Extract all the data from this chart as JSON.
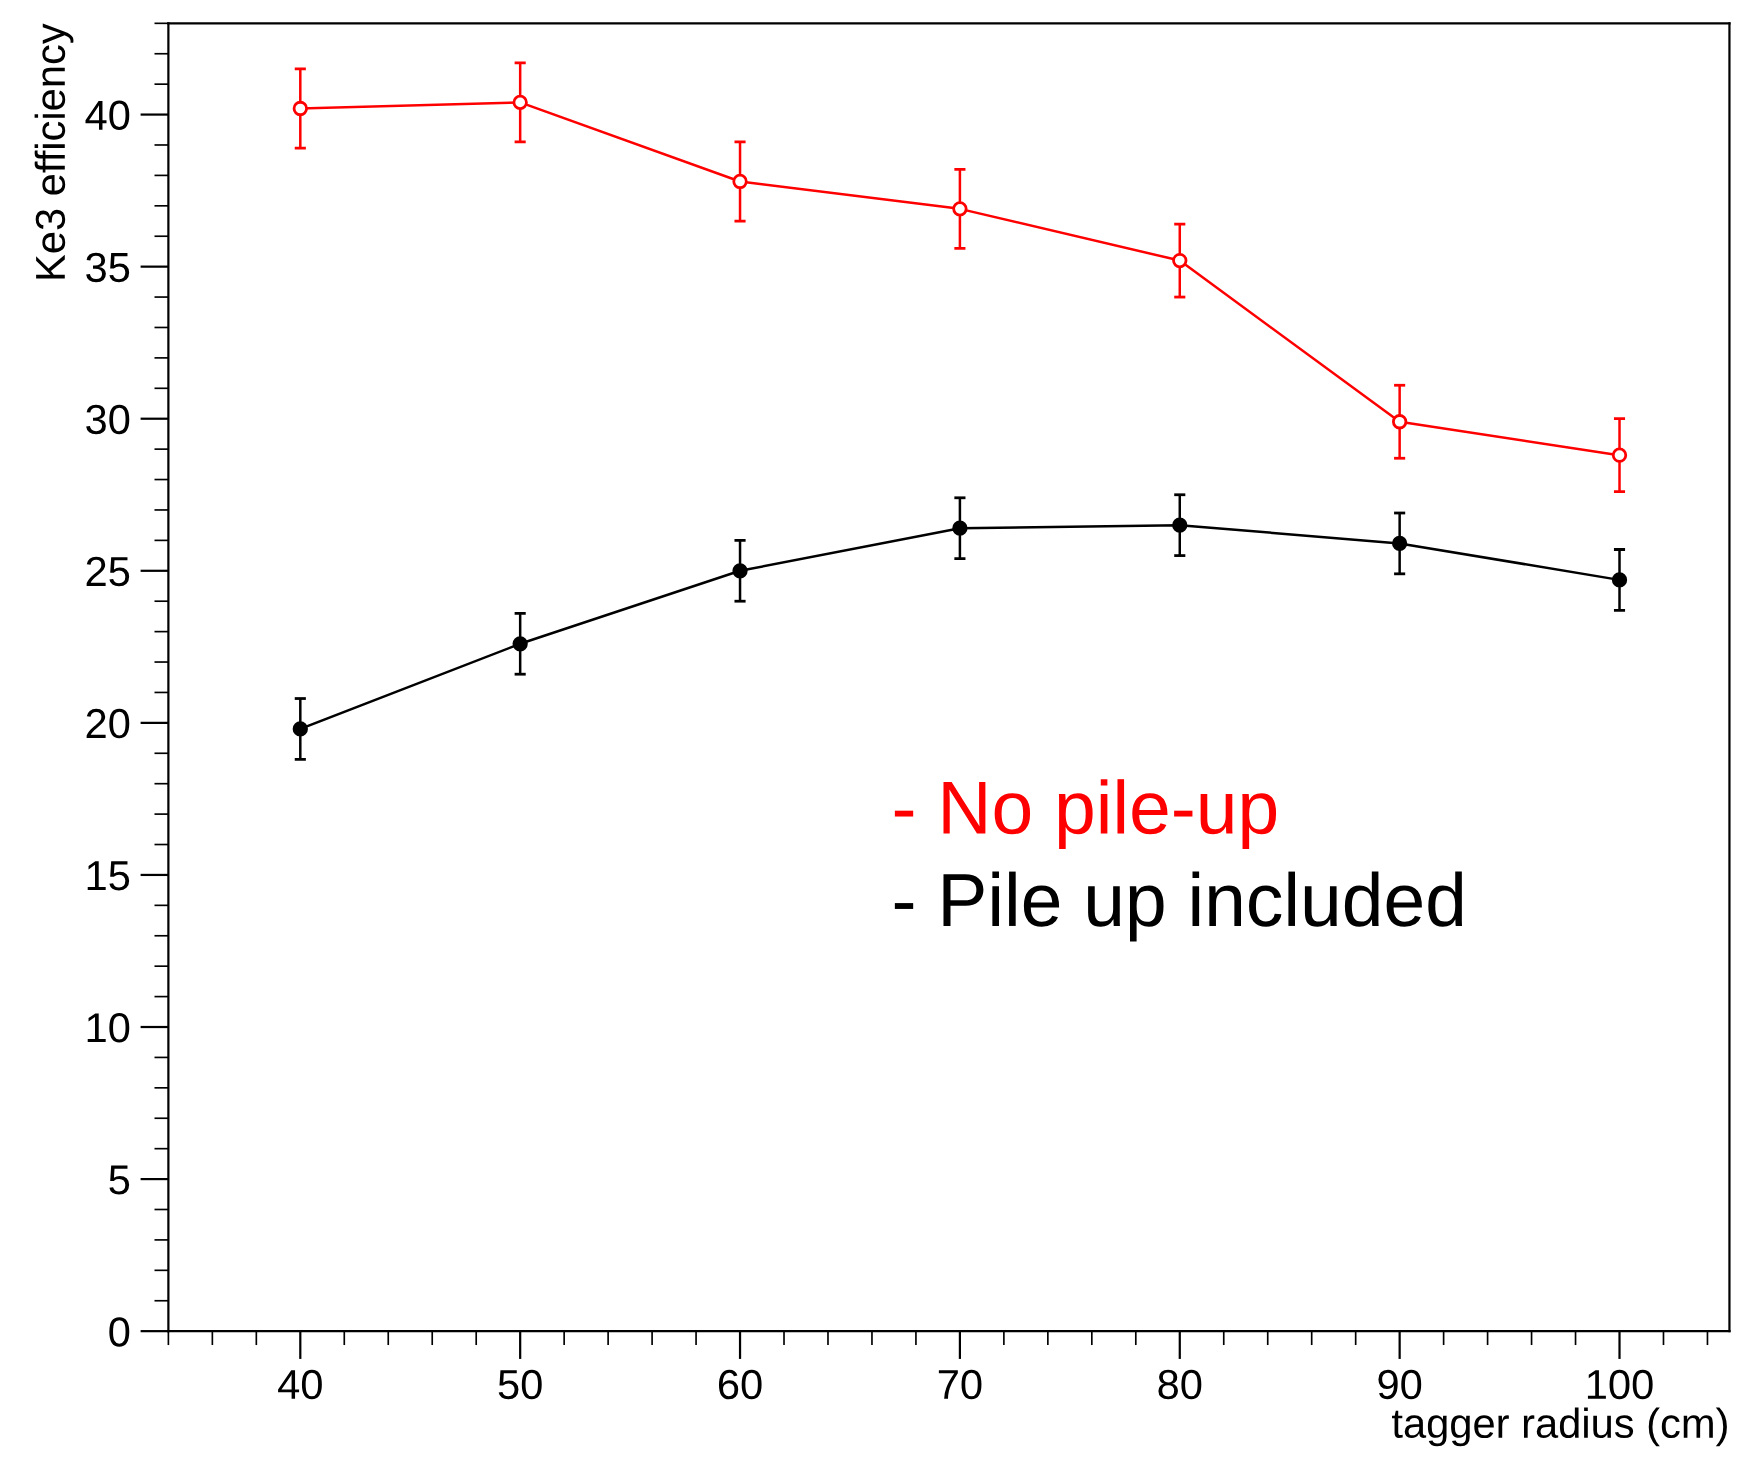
{
  "chart_data": {
    "type": "line",
    "xlabel": "tagger radius (cm)",
    "ylabel": "Ke3 efficiency",
    "x": [
      40,
      50,
      60,
      70,
      80,
      90,
      100
    ],
    "series": [
      {
        "name": "- No pile-up",
        "color": "#ff0000",
        "marker": "open circle",
        "values": [
          40.2,
          40.4,
          37.8,
          36.9,
          35.2,
          29.9,
          28.8
        ],
        "errors": [
          1.3,
          1.3,
          1.3,
          1.3,
          1.2,
          1.2,
          1.2
        ]
      },
      {
        "name": "- Pile up included",
        "color": "#000000",
        "marker": "circle",
        "values": [
          19.8,
          22.6,
          25.0,
          26.4,
          26.5,
          25.9,
          24.7
        ],
        "errors": [
          1.0,
          1.0,
          1.0,
          1.0,
          1.0,
          1.0,
          1.0
        ]
      }
    ],
    "xlim": [
      34,
      105
    ],
    "ylim": [
      0,
      43
    ],
    "xticks": [
      40,
      50,
      60,
      70,
      80,
      90,
      100
    ],
    "yticks": [
      0,
      5,
      10,
      15,
      20,
      25,
      30,
      35,
      40
    ],
    "grid": false,
    "legend": "center"
  }
}
